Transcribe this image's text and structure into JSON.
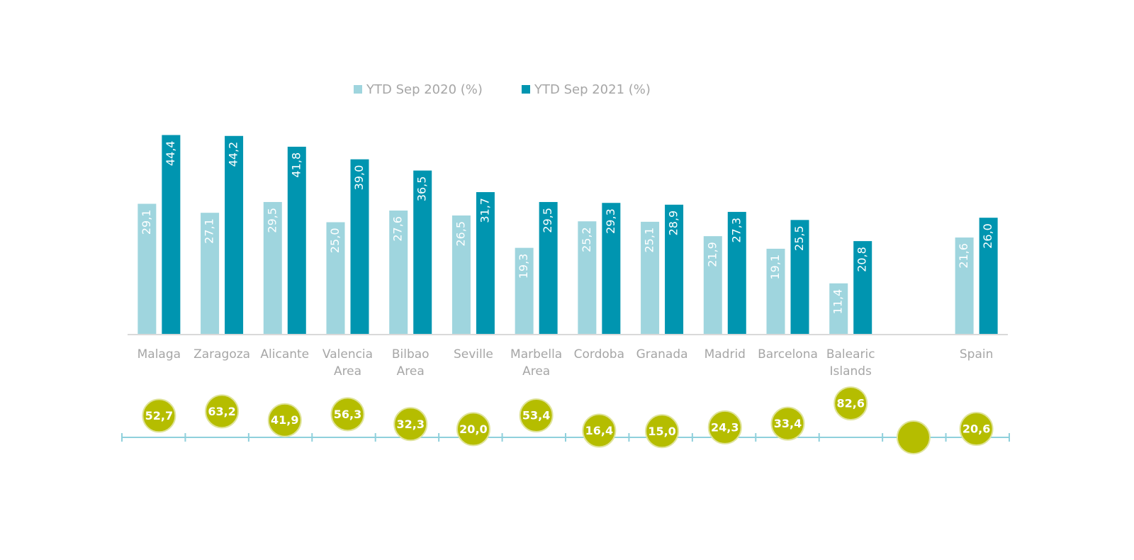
{
  "chart_data": [
    {
      "type": "bar",
      "categories": [
        "Malaga",
        "Zaragoza",
        "Alicante",
        "Valencia Area",
        "Bilbao Area",
        "Seville",
        "Marbella Area",
        "Cordoba",
        "Granada",
        "Madrid",
        "Barcelona",
        "Balearic Islands",
        null,
        "Spain"
      ],
      "series": [
        {
          "name": "YTD Sep 2020 (%)",
          "color": "#9fd5de",
          "values": [
            29.1,
            27.1,
            29.5,
            25.0,
            27.6,
            26.5,
            19.3,
            25.2,
            25.1,
            21.9,
            19.1,
            11.4,
            null,
            21.6
          ],
          "value_labels": [
            "29,1",
            "27,1",
            "29,5",
            "25,0",
            "27,6",
            "26,5",
            "19,3",
            "25,2",
            "25,1",
            "21,9",
            "19,1",
            "11,4",
            null,
            "21,6"
          ]
        },
        {
          "name": "YTD Sep 2021 (%)",
          "color": "#0095b0",
          "values": [
            44.4,
            44.2,
            41.8,
            39.0,
            36.5,
            31.7,
            29.5,
            29.3,
            28.9,
            27.3,
            25.5,
            20.8,
            null,
            26.0
          ],
          "value_labels": [
            "44,4",
            "44,2",
            "41,8",
            "39,0",
            "36,5",
            "31,7",
            "29,5",
            "29,3",
            "28,9",
            "27,3",
            "25,5",
            "20,8",
            null,
            "26,0"
          ]
        }
      ],
      "ylim": [
        0,
        50
      ]
    },
    {
      "type": "bubble",
      "color": "#b5bd00",
      "values": [
        52.7,
        63.2,
        41.9,
        56.3,
        32.3,
        20.0,
        53.4,
        16.4,
        15.0,
        24.3,
        33.4,
        82.6,
        0,
        20.6
      ],
      "value_labels": [
        "52,7",
        "63,2",
        "41,9",
        "56,3",
        "32,3",
        "20,0",
        "53,4",
        "16,4",
        "15,0",
        "24,3",
        "33,4",
        "82,6",
        null,
        "20,6"
      ],
      "ylim": [
        0,
        100
      ]
    }
  ]
}
